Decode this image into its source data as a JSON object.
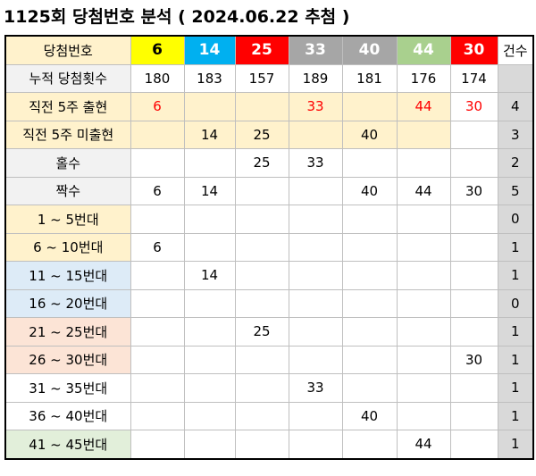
{
  "title": "1125회 당첨번호 분석 ( 2024.06.22 추첨 )",
  "header": {
    "label": "당첨번호",
    "numbers": [
      "6",
      "14",
      "25",
      "33",
      "40",
      "44",
      "30"
    ],
    "count_label": "건수"
  },
  "colors": {
    "n6": "#ffff00",
    "n14": "#00b0f0",
    "n25": "#ff0000",
    "n33": "#a6a6a6",
    "n40": "#a6a6a6",
    "n44": "#a9d08e",
    "n30": "#ff0000",
    "yellow_band": "#fff2cc",
    "blue_band": "#ddebf7",
    "orange_band": "#fce4d6",
    "green_band": "#e2efda",
    "gray_label": "#f2f2f2",
    "count_col": "#d9d9d9",
    "red_text": "#ff0000"
  },
  "rows": [
    {
      "label": "누적 당첨횟수",
      "cells": [
        "180",
        "183",
        "157",
        "189",
        "181",
        "176",
        "174"
      ],
      "count": ""
    },
    {
      "label": "직전 5주 출현",
      "cells": [
        "6",
        "",
        "",
        "33",
        "",
        "44",
        "30"
      ],
      "count": "4"
    },
    {
      "label": "직전 5주 미출현",
      "cells": [
        "",
        "14",
        "25",
        "",
        "40",
        "",
        ""
      ],
      "count": "3"
    },
    {
      "label": "홀수",
      "cells": [
        "",
        "",
        "25",
        "33",
        "",
        "",
        ""
      ],
      "count": "2"
    },
    {
      "label": "짝수",
      "cells": [
        "6",
        "14",
        "",
        "",
        "40",
        "44",
        "30"
      ],
      "count": "5"
    },
    {
      "label": "1 ~ 5번대",
      "cells": [
        "",
        "",
        "",
        "",
        "",
        "",
        ""
      ],
      "count": "0"
    },
    {
      "label": "6 ~ 10번대",
      "cells": [
        "6",
        "",
        "",
        "",
        "",
        "",
        ""
      ],
      "count": "1"
    },
    {
      "label": "11 ~ 15번대",
      "cells": [
        "",
        "14",
        "",
        "",
        "",
        "",
        ""
      ],
      "count": "1"
    },
    {
      "label": "16 ~ 20번대",
      "cells": [
        "",
        "",
        "",
        "",
        "",
        "",
        ""
      ],
      "count": "0"
    },
    {
      "label": "21 ~ 25번대",
      "cells": [
        "",
        "",
        "25",
        "",
        "",
        "",
        ""
      ],
      "count": "1"
    },
    {
      "label": "26 ~ 30번대",
      "cells": [
        "",
        "",
        "",
        "",
        "",
        "",
        "30"
      ],
      "count": "1"
    },
    {
      "label": "31 ~ 35번대",
      "cells": [
        "",
        "",
        "",
        "33",
        "",
        "",
        ""
      ],
      "count": "1"
    },
    {
      "label": "36 ~ 40번대",
      "cells": [
        "",
        "",
        "",
        "",
        "40",
        "",
        ""
      ],
      "count": "1"
    },
    {
      "label": "41 ~ 45번대",
      "cells": [
        "",
        "",
        "",
        "",
        "",
        "44",
        ""
      ],
      "count": "1"
    }
  ]
}
